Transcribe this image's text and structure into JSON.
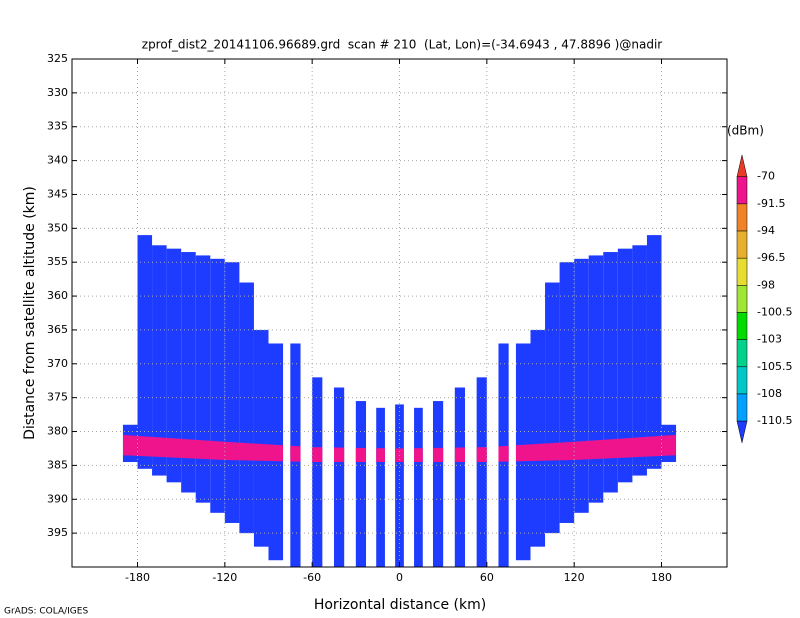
{
  "chart_data": {
    "type": "profile",
    "title": "zprof_dist2_20141106.96689.grd  scan # 210  (Lat, Lon)=(-34.6943 , 47.8896 )@nadir",
    "xlabel": "Horizontal distance (km)",
    "ylabel": "Distance from satellite altitude (km)",
    "footer": "GrADS: COLA/IGES",
    "xlim": [
      -225,
      225
    ],
    "xticks": [
      -180,
      -120,
      -60,
      0,
      60,
      120,
      180
    ],
    "ylim": [
      400,
      325
    ],
    "yticks": [
      325,
      330,
      335,
      340,
      345,
      350,
      355,
      360,
      365,
      370,
      375,
      380,
      385,
      390,
      395
    ],
    "grid": true,
    "columns": {
      "color": "#1e3cff",
      "x0": [
        -190,
        -180,
        -170,
        -160,
        -150,
        -140,
        -130,
        -120,
        -110,
        -100,
        -90,
        -75,
        -60,
        -45,
        -30,
        -16,
        -3,
        10,
        23,
        38,
        53,
        68,
        80,
        90,
        100,
        110,
        120,
        130,
        140,
        150,
        160,
        170,
        180
      ],
      "x1": [
        -180,
        -170,
        -160,
        -150,
        -140,
        -130,
        -120,
        -110,
        -100,
        -90,
        -80,
        -68,
        -53,
        -38,
        -23,
        -10,
        3,
        16,
        30,
        45,
        60,
        75,
        90,
        100,
        110,
        120,
        130,
        140,
        150,
        160,
        170,
        180,
        190
      ],
      "top": [
        379,
        351,
        352.5,
        353,
        353.5,
        354,
        354.5,
        355,
        358,
        365,
        367,
        367,
        372,
        373.5,
        375.5,
        376.5,
        376,
        376.5,
        375.5,
        373.5,
        372,
        367,
        367,
        365,
        358,
        355,
        354.5,
        354,
        353.5,
        353,
        352.5,
        351,
        379
      ],
      "bottom": [
        384.5,
        385.5,
        386.5,
        387.5,
        389,
        390.5,
        392,
        393.5,
        395,
        397,
        399,
        400,
        400,
        400,
        400,
        400,
        400,
        400,
        400,
        400,
        400,
        400,
        399,
        397,
        395,
        393.5,
        392,
        390.5,
        389,
        387.5,
        386.5,
        385.5,
        384.5
      ]
    },
    "band": {
      "color": "#f0148c",
      "x": [
        -190,
        -120,
        -60,
        0,
        60,
        120,
        190
      ],
      "top": [
        380.5,
        381.5,
        382.3,
        382.5,
        382.3,
        381.5,
        380.5
      ],
      "bottom": [
        383.5,
        384.2,
        384.5,
        384.5,
        384.5,
        384.2,
        383.5
      ]
    },
    "colorbar": {
      "unit": "(dBm)",
      "labels": [
        -70,
        -91.5,
        -94,
        -96.5,
        -98,
        -100.5,
        -103,
        -105.5,
        -108,
        -110.5
      ],
      "colors": [
        "#e63c28",
        "#f0148c",
        "#f08228",
        "#e6af2d",
        "#e6dc32",
        "#a0e632",
        "#00dc00",
        "#00d28c",
        "#00c8c8",
        "#00a0ff",
        "#1e3cff"
      ]
    }
  }
}
